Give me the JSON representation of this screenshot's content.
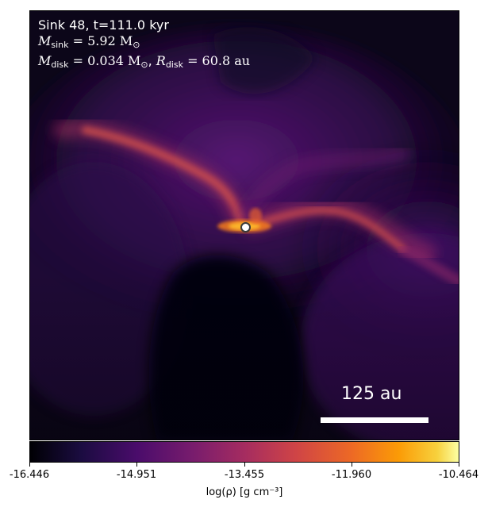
{
  "info": {
    "line1": "Sink 48, t=111.0 kyr",
    "msink_symbol": "M",
    "msink_sub": "sink",
    "msink_value": "= 5.92 M",
    "msink_unit_sub": "⊙",
    "mdisk_symbol": "M",
    "mdisk_sub": "disk",
    "mdisk_value": "= 0.034 M",
    "mdisk_unit_sub": "⊙",
    "rdisk_prefix": ", ",
    "rdisk_symbol": "R",
    "rdisk_sub": "disk",
    "rdisk_value": "= 60.8 au"
  },
  "scalebar": {
    "label": "125 au"
  },
  "colorbar": {
    "ticks": [
      "-16.446",
      "-14.951",
      "-13.455",
      "-11.960",
      "-10.464"
    ],
    "label": "log(ρ) [g cm⁻³]",
    "colormap": "inferno"
  }
}
